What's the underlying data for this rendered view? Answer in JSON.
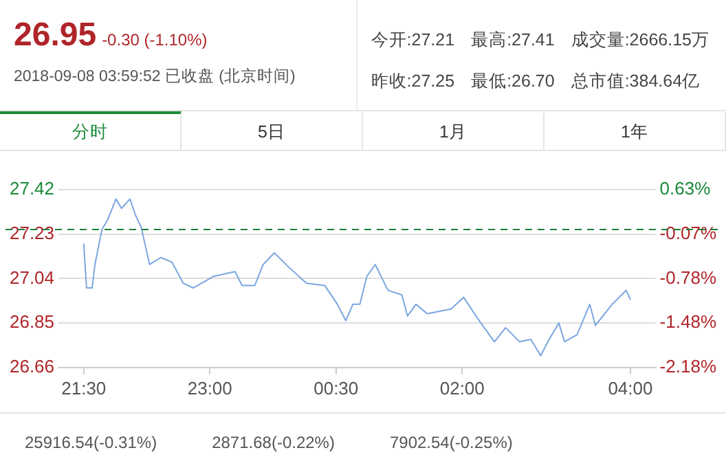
{
  "chart_data": {
    "type": "line",
    "title": "26.95",
    "subtitle": "-0.30 (-1.10%)",
    "annotations": [
      "2018-09-08 03:59:52 已收盘 (北京时间)",
      "今开:27.21",
      "最高:27.41",
      "成交量:2666.15万",
      "昨收:27.25",
      "最低:26.70",
      "总市值:384.64亿",
      "分时",
      "5日",
      "1月",
      "1年",
      "25916.54(-0.31%)",
      "2871.68(-0.22%)",
      "7902.54(-0.25%)"
    ],
    "series": [
      {
        "color": "#7aa6e0",
        "x": [
          "2018-09-07T21:30",
          "2018-09-07T21:32",
          "2018-09-07T21:36",
          "2018-09-07T21:38",
          "2018-09-07T21:40",
          "2018-09-07T21:43",
          "2018-09-07T21:47",
          "2018-09-07T21:53",
          "2018-09-07T21:57",
          "2018-09-07T22:03",
          "2018-09-07T22:07",
          "2018-09-07T22:11",
          "2018-09-07T22:17",
          "2018-09-07T22:25",
          "2018-09-07T22:33",
          "2018-09-07T22:41",
          "2018-09-07T22:48",
          "2018-09-07T23:03",
          "2018-09-07T23:18",
          "2018-09-07T23:23",
          "2018-09-07T23:32",
          "2018-09-07T23:38",
          "2018-09-07T23:46",
          "2018-09-07T23:56",
          "2018-09-08T00:09",
          "2018-09-08T00:22",
          "2018-09-08T00:31",
          "2018-09-08T00:37",
          "2018-09-08T00:42",
          "2018-09-08T00:47",
          "2018-09-08T00:52",
          "2018-09-08T00:58",
          "2018-09-08T01:07",
          "2018-09-08T01:17",
          "2018-09-08T01:21",
          "2018-09-08T01:27",
          "2018-09-08T01:35",
          "2018-09-08T01:52",
          "2018-09-08T02:01",
          "2018-09-08T02:11",
          "2018-09-08T02:23",
          "2018-09-08T02:31",
          "2018-09-08T02:41",
          "2018-09-08T02:49",
          "2018-09-08T02:56",
          "2018-09-08T03:02",
          "2018-09-08T03:09",
          "2018-09-08T03:13",
          "2018-09-08T03:22",
          "2018-09-08T03:31",
          "2018-09-08T03:35",
          "2018-09-08T03:47",
          "2018-09-08T03:57",
          "2018-09-08T04:00"
        ],
        "values": [
          27.19,
          27.0,
          27.0,
          27.1,
          27.16,
          27.25,
          27.29,
          27.38,
          27.34,
          27.38,
          27.31,
          27.26,
          27.1,
          27.13,
          27.11,
          27.02,
          27.0,
          27.05,
          27.07,
          27.01,
          27.01,
          27.1,
          27.15,
          27.09,
          27.02,
          27.01,
          26.93,
          26.86,
          26.93,
          26.93,
          27.05,
          27.1,
          26.99,
          26.97,
          26.88,
          26.93,
          26.89,
          26.91,
          26.96,
          26.87,
          26.77,
          26.83,
          26.77,
          26.78,
          26.71,
          26.78,
          26.85,
          26.77,
          26.8,
          26.93,
          26.84,
          26.93,
          26.99,
          26.95
        ]
      }
    ],
    "xlim": [
      "2018-09-07T21:12",
      "2018-09-08T04:18"
    ],
    "xticks": [
      {
        "value": "2018-09-07T21:30",
        "label": "21:30"
      },
      {
        "value": "2018-09-07T23:00",
        "label": "23:00"
      },
      {
        "value": "2018-09-08T00:30",
        "label": "00:30"
      },
      {
        "value": "2018-09-08T02:00",
        "label": "02:00"
      },
      {
        "value": "2018-09-08T04:00",
        "label": "04:00"
      }
    ],
    "ylim": [
      26.66,
      27.42
    ],
    "yticks": [
      26.66,
      26.85,
      27.04,
      27.23,
      27.42
    ],
    "y2lim": [
      -2.18,
      0.63
    ],
    "y2ticks": [
      {
        "value": -2.18,
        "label": "-2.18%"
      },
      {
        "value": -1.48,
        "label": "-1.48%"
      },
      {
        "value": -0.78,
        "label": "-0.78%"
      },
      {
        "value": -0.07,
        "label": "-0.07%"
      },
      {
        "value": 0.63,
        "label": "0.63%"
      }
    ],
    "ref_lines": [
      {
        "axis": "y",
        "value": 27.25,
        "color": "#1a7f37",
        "line_style": "dashed"
      }
    ],
    "grid": "y",
    "legend": false
  }
}
